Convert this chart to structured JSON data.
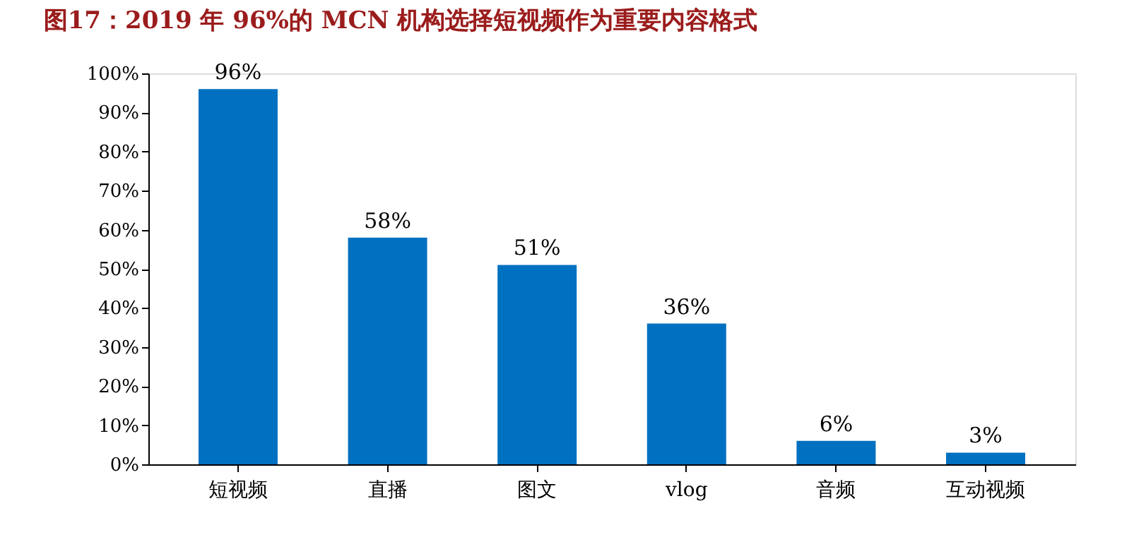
{
  "chart_data": {
    "type": "bar",
    "title": "图17：2019 年 96%的 MCN 机构选择短视频作为重要内容格式",
    "categories": [
      "短视频",
      "直播",
      "图文",
      "vlog",
      "音频",
      "互动视频"
    ],
    "values": [
      96,
      58,
      51,
      36,
      6,
      3
    ],
    "color": "#0070c0",
    "ylim": [
      0,
      100
    ],
    "yticks": [
      {
        "value": 0,
        "label": "0%"
      },
      {
        "value": 10,
        "label": "10%"
      },
      {
        "value": 20,
        "label": "20%"
      },
      {
        "value": 30,
        "label": "30%"
      },
      {
        "value": 40,
        "label": "40%"
      },
      {
        "value": 50,
        "label": "50%"
      },
      {
        "value": 60,
        "label": "60%"
      },
      {
        "value": 70,
        "label": "70%"
      },
      {
        "value": 80,
        "label": "80%"
      },
      {
        "value": 90,
        "label": "90%"
      },
      {
        "value": 100,
        "label": "100%"
      }
    ],
    "value_labels": [
      "96%",
      "58%",
      "51%",
      "36%",
      "6%",
      "3%"
    ],
    "grid": false
  }
}
